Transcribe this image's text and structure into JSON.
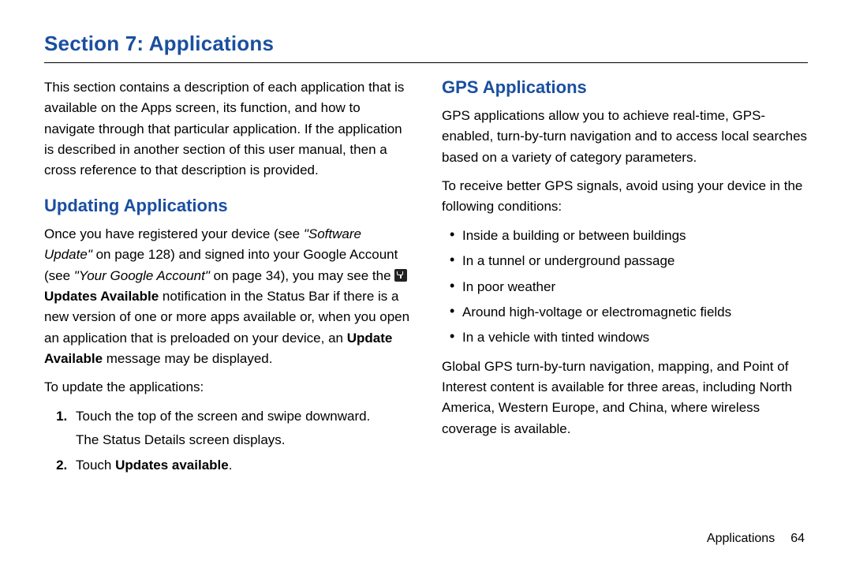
{
  "section_title": "Section 7: Applications",
  "left": {
    "intro": "This section contains a description of each application that is available on the Apps screen, its function, and how to navigate through that particular application. If the application is described in another section of this user manual, then a cross reference to that description is provided.",
    "subhead": "Updating Applications",
    "p1_a": "Once you have registered your device (see ",
    "p1_ref1": "\"Software Update\"",
    "p1_b": " on page 128) and signed into your Google Account (see ",
    "p1_ref2": "\"Your Google Account\"",
    "p1_c": " on page 34), you may see the ",
    "p1_bold1": "Updates Available",
    "p1_d": " notification in the Status Bar if there is a new version of one or more apps available or, when you open an application that is preloaded on your device, an ",
    "p1_bold2": "Update Available",
    "p1_e": " message may be displayed.",
    "to_update": "To update the applications:",
    "step1": "Touch the top of the screen and swipe downward.",
    "step1_sub": "The Status Details screen displays.",
    "step2_a": "Touch ",
    "step2_bold": "Updates available",
    "step2_b": "."
  },
  "right": {
    "subhead": "GPS Applications",
    "p1": "GPS applications allow you to achieve real-time, GPS-enabled, turn-by-turn navigation and to access local searches based on a variety of category parameters.",
    "p2": "To receive better GPS signals, avoid using your device in the following conditions:",
    "bullets": [
      "Inside a building or between buildings",
      "In a tunnel or underground passage",
      "In poor weather",
      "Around high-voltage or electromagnetic fields",
      "In a vehicle with tinted windows"
    ],
    "p3": "Global GPS turn-by-turn navigation, mapping, and Point of Interest content is available for three areas, including North America, Western Europe, and China, where wireless coverage is available."
  },
  "footer": {
    "label": "Applications",
    "page": "64"
  },
  "colors": {
    "heading": "#1a4fa0",
    "text": "#000000",
    "background": "#ffffff",
    "rule": "#000000"
  },
  "typography": {
    "title_fontsize": 26,
    "subhead_fontsize": 22,
    "body_fontsize": 17,
    "footer_fontsize": 16
  }
}
